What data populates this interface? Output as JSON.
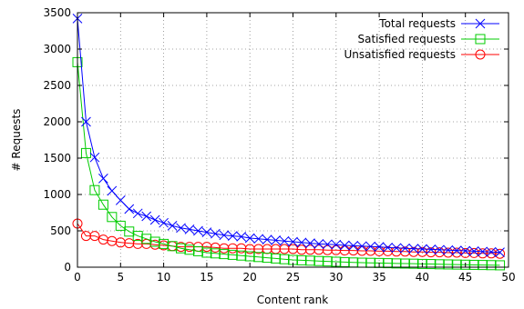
{
  "chart_data": {
    "type": "line",
    "title": "",
    "xlabel": "Content rank",
    "ylabel": "# Requests",
    "xlim": [
      0,
      50
    ],
    "ylim": [
      0,
      3500
    ],
    "xticks": [
      0,
      5,
      10,
      15,
      20,
      25,
      30,
      35,
      40,
      45,
      50
    ],
    "yticks": [
      0,
      500,
      1000,
      1500,
      2000,
      2500,
      3000,
      3500
    ],
    "grid": true,
    "legend_position": "top-right",
    "x": [
      0,
      1,
      2,
      3,
      4,
      5,
      6,
      7,
      8,
      9,
      10,
      11,
      12,
      13,
      14,
      15,
      16,
      17,
      18,
      19,
      20,
      21,
      22,
      23,
      24,
      25,
      26,
      27,
      28,
      29,
      30,
      31,
      32,
      33,
      34,
      35,
      36,
      37,
      38,
      39,
      40,
      41,
      42,
      43,
      44,
      45,
      46,
      47,
      48,
      49
    ],
    "series": [
      {
        "name": "Total requests",
        "color": "#0000ff",
        "marker": "x",
        "values": [
          3420,
          2000,
          1510,
          1220,
          1050,
          920,
          800,
          740,
          700,
          650,
          610,
          570,
          540,
          520,
          500,
          480,
          460,
          440,
          430,
          420,
          400,
          390,
          380,
          370,
          360,
          350,
          340,
          330,
          320,
          315,
          310,
          300,
          295,
          290,
          285,
          280,
          270,
          265,
          260,
          255,
          250,
          245,
          240,
          235,
          230,
          225,
          220,
          215,
          210,
          205
        ]
      },
      {
        "name": "Satisfied requests",
        "color": "#00cc00",
        "marker": "square",
        "values": [
          2820,
          1570,
          1060,
          860,
          690,
          570,
          490,
          430,
          390,
          350,
          320,
          290,
          260,
          240,
          220,
          200,
          190,
          180,
          170,
          160,
          150,
          140,
          130,
          120,
          110,
          100,
          95,
          90,
          85,
          80,
          75,
          70,
          65,
          62,
          60,
          58,
          55,
          52,
          50,
          48,
          45,
          43,
          40,
          38,
          36,
          34,
          32,
          30,
          28,
          26
        ]
      },
      {
        "name": "Unsatisfied requests",
        "color": "#ff0000",
        "marker": "circle",
        "values": [
          600,
          430,
          430,
          380,
          360,
          340,
          330,
          320,
          320,
          310,
          300,
          290,
          280,
          280,
          280,
          280,
          270,
          260,
          260,
          260,
          250,
          250,
          250,
          250,
          250,
          250,
          240,
          240,
          240,
          235,
          235,
          230,
          230,
          225,
          225,
          220,
          220,
          215,
          215,
          210,
          210,
          205,
          205,
          200,
          200,
          195,
          195,
          190,
          190,
          185
        ]
      }
    ]
  }
}
